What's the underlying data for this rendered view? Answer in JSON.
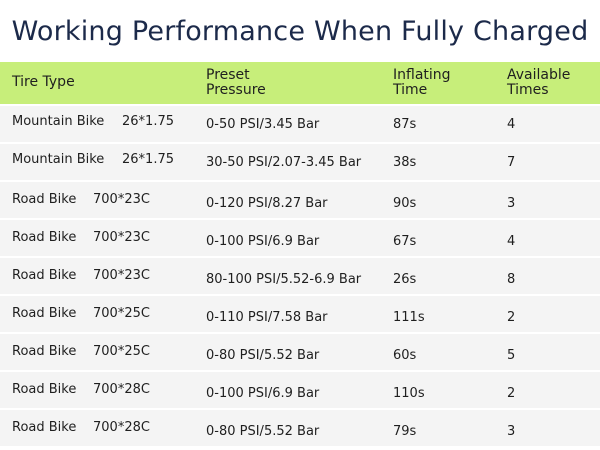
{
  "title": "Working Performance When Fully Charged",
  "headers": {
    "tire_type": "Tire Type",
    "preset_line1": "Preset",
    "preset_line2": "Pressure",
    "inflating_line1": "Inflating",
    "inflating_line2": "Time",
    "available_line1": "Available",
    "available_line2": "Times"
  },
  "rows": [
    {
      "type": "Mountain Bike",
      "size": "26*1.75",
      "pressure": "0-50 PSI/3.45 Bar",
      "time": "87s",
      "times": "4"
    },
    {
      "type": "Mountain Bike",
      "size": "26*1.75",
      "pressure": "30-50 PSI/2.07-3.45 Bar",
      "time": "38s",
      "times": "7"
    },
    {
      "type": "Road Bike",
      "size": "700*23C",
      "pressure": "0-120 PSI/8.27 Bar",
      "time": "90s",
      "times": "3"
    },
    {
      "type": "Road Bike",
      "size": "700*23C",
      "pressure": "0-100 PSI/6.9 Bar",
      "time": "67s",
      "times": "4"
    },
    {
      "type": "Road Bike",
      "size": "700*23C",
      "pressure": "80-100 PSI/5.52-6.9 Bar",
      "time": "26s",
      "times": "8"
    },
    {
      "type": "Road Bike",
      "size": "700*25C",
      "pressure": "0-110 PSI/7.58 Bar",
      "time": "111s",
      "times": "2"
    },
    {
      "type": "Road Bike",
      "size": "700*25C",
      "pressure": "0-80 PSI/5.52 Bar",
      "time": "60s",
      "times": "5"
    },
    {
      "type": "Road Bike",
      "size": "700*28C",
      "pressure": "0-100 PSI/6.9 Bar",
      "time": "110s",
      "times": "2"
    },
    {
      "type": "Road Bike",
      "size": "700*28C",
      "pressure": "0-80 PSI/5.52 Bar",
      "time": "79s",
      "times": "3"
    }
  ]
}
